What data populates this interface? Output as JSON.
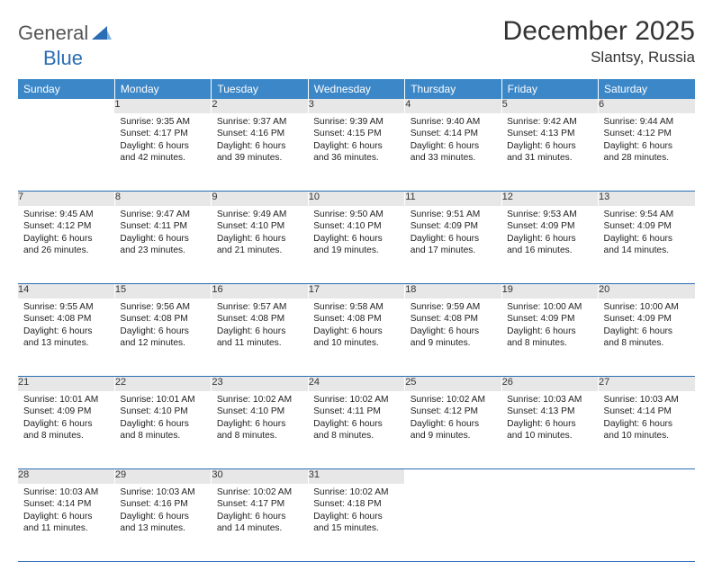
{
  "logo": {
    "text1": "General",
    "text2": "Blue"
  },
  "title": "December 2025",
  "location": "Slantsy, Russia",
  "weekdays": [
    "Sunday",
    "Monday",
    "Tuesday",
    "Wednesday",
    "Thursday",
    "Friday",
    "Saturday"
  ],
  "colors": {
    "header_bg": "#3b87c8",
    "rule": "#2a6db5",
    "daynum_bg": "#e7e7e7"
  },
  "weeks": [
    {
      "nums": [
        "",
        "1",
        "2",
        "3",
        "4",
        "5",
        "6"
      ],
      "cells": [
        "",
        "Sunrise: 9:35 AM\nSunset: 4:17 PM\nDaylight: 6 hours and 42 minutes.",
        "Sunrise: 9:37 AM\nSunset: 4:16 PM\nDaylight: 6 hours and 39 minutes.",
        "Sunrise: 9:39 AM\nSunset: 4:15 PM\nDaylight: 6 hours and 36 minutes.",
        "Sunrise: 9:40 AM\nSunset: 4:14 PM\nDaylight: 6 hours and 33 minutes.",
        "Sunrise: 9:42 AM\nSunset: 4:13 PM\nDaylight: 6 hours and 31 minutes.",
        "Sunrise: 9:44 AM\nSunset: 4:12 PM\nDaylight: 6 hours and 28 minutes."
      ]
    },
    {
      "nums": [
        "7",
        "8",
        "9",
        "10",
        "11",
        "12",
        "13"
      ],
      "cells": [
        "Sunrise: 9:45 AM\nSunset: 4:12 PM\nDaylight: 6 hours and 26 minutes.",
        "Sunrise: 9:47 AM\nSunset: 4:11 PM\nDaylight: 6 hours and 23 minutes.",
        "Sunrise: 9:49 AM\nSunset: 4:10 PM\nDaylight: 6 hours and 21 minutes.",
        "Sunrise: 9:50 AM\nSunset: 4:10 PM\nDaylight: 6 hours and 19 minutes.",
        "Sunrise: 9:51 AM\nSunset: 4:09 PM\nDaylight: 6 hours and 17 minutes.",
        "Sunrise: 9:53 AM\nSunset: 4:09 PM\nDaylight: 6 hours and 16 minutes.",
        "Sunrise: 9:54 AM\nSunset: 4:09 PM\nDaylight: 6 hours and 14 minutes."
      ]
    },
    {
      "nums": [
        "14",
        "15",
        "16",
        "17",
        "18",
        "19",
        "20"
      ],
      "cells": [
        "Sunrise: 9:55 AM\nSunset: 4:08 PM\nDaylight: 6 hours and 13 minutes.",
        "Sunrise: 9:56 AM\nSunset: 4:08 PM\nDaylight: 6 hours and 12 minutes.",
        "Sunrise: 9:57 AM\nSunset: 4:08 PM\nDaylight: 6 hours and 11 minutes.",
        "Sunrise: 9:58 AM\nSunset: 4:08 PM\nDaylight: 6 hours and 10 minutes.",
        "Sunrise: 9:59 AM\nSunset: 4:08 PM\nDaylight: 6 hours and 9 minutes.",
        "Sunrise: 10:00 AM\nSunset: 4:09 PM\nDaylight: 6 hours and 8 minutes.",
        "Sunrise: 10:00 AM\nSunset: 4:09 PM\nDaylight: 6 hours and 8 minutes."
      ]
    },
    {
      "nums": [
        "21",
        "22",
        "23",
        "24",
        "25",
        "26",
        "27"
      ],
      "cells": [
        "Sunrise: 10:01 AM\nSunset: 4:09 PM\nDaylight: 6 hours and 8 minutes.",
        "Sunrise: 10:01 AM\nSunset: 4:10 PM\nDaylight: 6 hours and 8 minutes.",
        "Sunrise: 10:02 AM\nSunset: 4:10 PM\nDaylight: 6 hours and 8 minutes.",
        "Sunrise: 10:02 AM\nSunset: 4:11 PM\nDaylight: 6 hours and 8 minutes.",
        "Sunrise: 10:02 AM\nSunset: 4:12 PM\nDaylight: 6 hours and 9 minutes.",
        "Sunrise: 10:03 AM\nSunset: 4:13 PM\nDaylight: 6 hours and 10 minutes.",
        "Sunrise: 10:03 AM\nSunset: 4:14 PM\nDaylight: 6 hours and 10 minutes."
      ]
    },
    {
      "nums": [
        "28",
        "29",
        "30",
        "31",
        "",
        "",
        ""
      ],
      "cells": [
        "Sunrise: 10:03 AM\nSunset: 4:14 PM\nDaylight: 6 hours and 11 minutes.",
        "Sunrise: 10:03 AM\nSunset: 4:16 PM\nDaylight: 6 hours and 13 minutes.",
        "Sunrise: 10:02 AM\nSunset: 4:17 PM\nDaylight: 6 hours and 14 minutes.",
        "Sunrise: 10:02 AM\nSunset: 4:18 PM\nDaylight: 6 hours and 15 minutes.",
        "",
        "",
        ""
      ]
    }
  ]
}
